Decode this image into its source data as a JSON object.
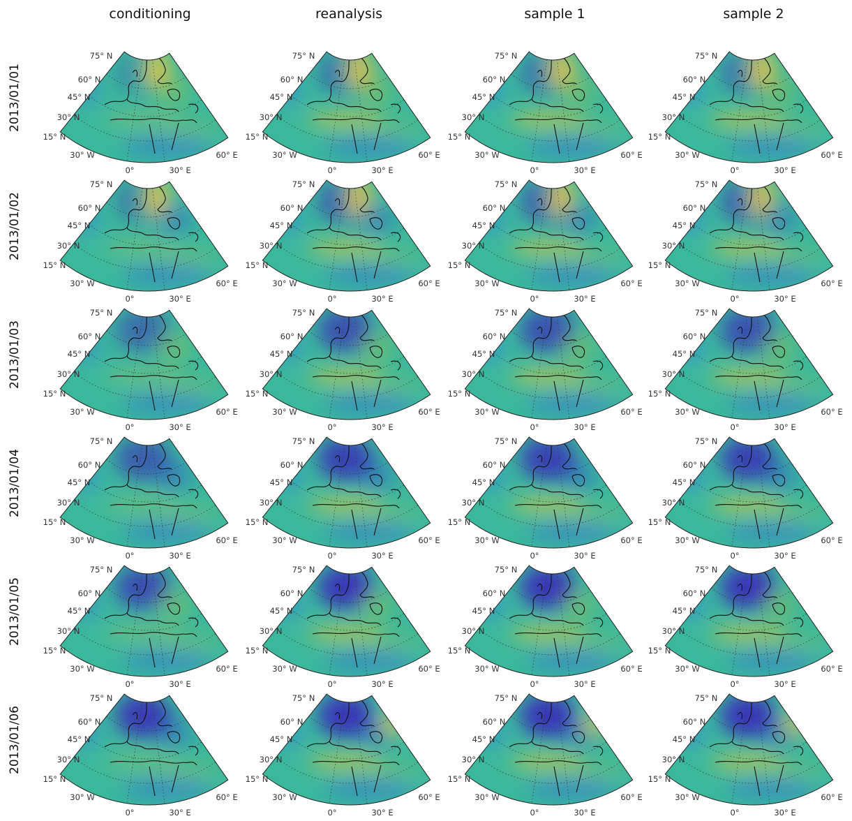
{
  "columns": [
    "conditioning",
    "reanalysis",
    "sample 1",
    "sample 2"
  ],
  "rows": [
    "2013/01/01",
    "2013/01/02",
    "2013/01/03",
    "2013/01/04",
    "2013/01/05",
    "2013/01/06"
  ],
  "map_labels": {
    "lat": [
      "75° N",
      "60° N",
      "45° N",
      "30° N",
      "15° N"
    ],
    "lon": [
      "30° W",
      "60° E",
      "0°",
      "30° E"
    ]
  }
}
